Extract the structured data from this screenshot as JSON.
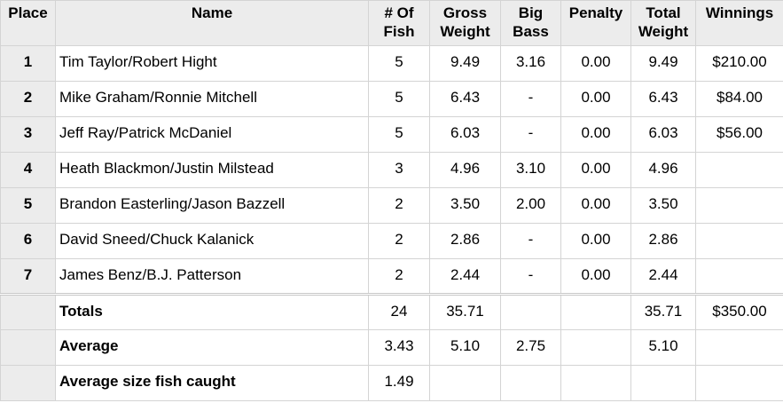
{
  "headers": [
    "Place",
    "Name",
    "# Of Fish",
    "Gross Weight",
    "Big Bass",
    "Penalty",
    "Total Weight",
    "Winnings"
  ],
  "rows": [
    {
      "place": "1",
      "name": "Tim Taylor/Robert Hight",
      "fish": "5",
      "gross": "9.49",
      "big_bass": "3.16",
      "penalty": "0.00",
      "total": "9.49",
      "winnings": "$210.00"
    },
    {
      "place": "2",
      "name": "Mike Graham/Ronnie Mitchell",
      "fish": "5",
      "gross": "6.43",
      "big_bass": "-",
      "penalty": "0.00",
      "total": "6.43",
      "winnings": "$84.00"
    },
    {
      "place": "3",
      "name": "Jeff Ray/Patrick McDaniel",
      "fish": "5",
      "gross": "6.03",
      "big_bass": "-",
      "penalty": "0.00",
      "total": "6.03",
      "winnings": "$56.00"
    },
    {
      "place": "4",
      "name": "Heath Blackmon/Justin Milstead",
      "fish": "3",
      "gross": "4.96",
      "big_bass": "3.10",
      "penalty": "0.00",
      "total": "4.96",
      "winnings": ""
    },
    {
      "place": "5",
      "name": "Brandon Easterling/Jason Bazzell",
      "fish": "2",
      "gross": "3.50",
      "big_bass": "2.00",
      "penalty": "0.00",
      "total": "3.50",
      "winnings": ""
    },
    {
      "place": "6",
      "name": "David Sneed/Chuck Kalanick",
      "fish": "2",
      "gross": "2.86",
      "big_bass": "-",
      "penalty": "0.00",
      "total": "2.86",
      "winnings": ""
    },
    {
      "place": "7",
      "name": "James Benz/B.J. Patterson",
      "fish": "2",
      "gross": "2.44",
      "big_bass": "-",
      "penalty": "0.00",
      "total": "2.44",
      "winnings": ""
    }
  ],
  "summary": [
    {
      "label": "Totals",
      "fish": "24",
      "gross": "35.71",
      "big_bass": "",
      "penalty": "",
      "total": "35.71",
      "winnings": "$350.00"
    },
    {
      "label": "Average",
      "fish": "3.43",
      "gross": "5.10",
      "big_bass": "2.75",
      "penalty": "",
      "total": "5.10",
      "winnings": ""
    },
    {
      "label": "Average size fish caught",
      "fish": "1.49",
      "gross": "",
      "big_bass": "",
      "penalty": "",
      "total": "",
      "winnings": ""
    }
  ]
}
